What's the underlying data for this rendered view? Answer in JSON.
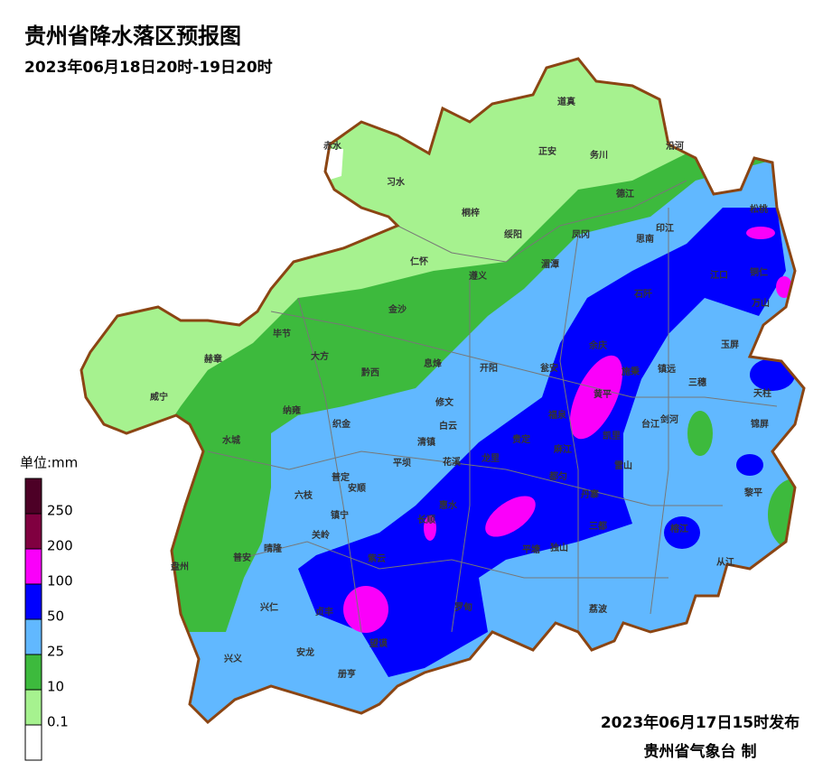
{
  "header": {
    "title": "贵州省降水落区预报图",
    "subtitle": "2023年06月18日20时-19日20时"
  },
  "legend": {
    "title": "单位:mm",
    "levels": [
      0.1,
      10,
      25,
      50,
      100,
      200,
      250
    ],
    "colors": [
      "#ffffff",
      "#a6f28f",
      "#3dba3d",
      "#61b8ff",
      "#0000fe",
      "#fa00fa",
      "#800040",
      "#4d0026"
    ]
  },
  "counties": [
    "赤水",
    "习水",
    "道真",
    "正安",
    "务川",
    "沿河",
    "桐梓",
    "绥阳",
    "德江",
    "印江",
    "思南",
    "凤冈",
    "松桃",
    "仁怀",
    "遵义",
    "湄潭",
    "江口",
    "铜仁",
    "石阡",
    "万山",
    "金沙",
    "毕节",
    "大方",
    "余庆",
    "玉屏",
    "黔西",
    "息烽",
    "开阳",
    "瓮安",
    "施秉",
    "镇远",
    "赫章",
    "三穗",
    "天柱",
    "黄平",
    "威宁",
    "纳雍",
    "修文",
    "福泉",
    "台江",
    "剑河",
    "锦屏",
    "织金",
    "白云",
    "清镇",
    "贵定",
    "凯里",
    "麻江",
    "雷山",
    "水城",
    "龙里",
    "花溪",
    "平坝",
    "黎平",
    "普定",
    "安顺",
    "都匀",
    "丹寨",
    "六枝",
    "长顺",
    "惠水",
    "镇宁",
    "关岭",
    "榕江",
    "三都",
    "平塘",
    "独山",
    "晴隆",
    "紫云",
    "从江",
    "盘州",
    "普安",
    "兴仁",
    "贞丰",
    "罗甸",
    "荔波",
    "望谟",
    "兴义",
    "安龙",
    "册亨"
  ],
  "footer": {
    "issued": "2023年06月17日15时发布",
    "agency": "贵州省气象台 制"
  }
}
